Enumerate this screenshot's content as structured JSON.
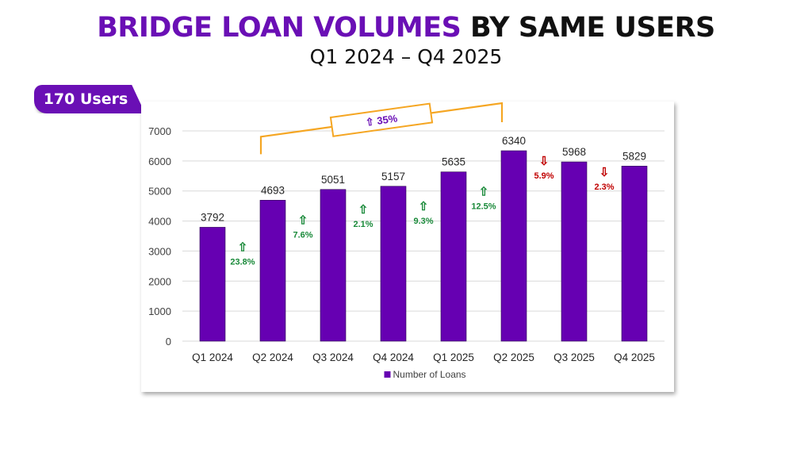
{
  "header": {
    "title_accent": "BRIDGE LOAN VOLUMES",
    "title_rest": " BY SAME USERS",
    "subtitle": "Q1 2024 – Q4 2025"
  },
  "badge": {
    "label": "170 Users"
  },
  "colors": {
    "accent": "#6a0fb5",
    "bar": "#6600b2",
    "up": "#1a8a3a",
    "down": "#c00000",
    "bracket": "#f5a623"
  },
  "chart_data": {
    "type": "bar",
    "categories": [
      "Q1 2024",
      "Q2 2024",
      "Q3 2024",
      "Q4 2024",
      "Q1 2025",
      "Q2 2025",
      "Q3 2025",
      "Q4 2025"
    ],
    "series": [
      {
        "name": "Number of Loans",
        "values": [
          3792,
          4693,
          5051,
          5157,
          5635,
          6340,
          5968,
          5829
        ]
      }
    ],
    "ylim": [
      0,
      7000
    ],
    "yticks": [
      0,
      1000,
      2000,
      3000,
      4000,
      5000,
      6000,
      7000
    ],
    "grid": true,
    "legend": "bottom",
    "changes": [
      {
        "label": "23.8%",
        "direction": "up"
      },
      {
        "label": "7.6%",
        "direction": "up"
      },
      {
        "label": "2.1%",
        "direction": "up"
      },
      {
        "label": "9.3%",
        "direction": "up"
      },
      {
        "label": "12.5%",
        "direction": "up"
      },
      {
        "label": "5.9%",
        "direction": "down"
      },
      {
        "label": "2.3%",
        "direction": "down"
      }
    ],
    "overall_change": {
      "label": "35%",
      "direction": "up",
      "from": "Q2 2024",
      "to": "Q2 2025"
    }
  }
}
